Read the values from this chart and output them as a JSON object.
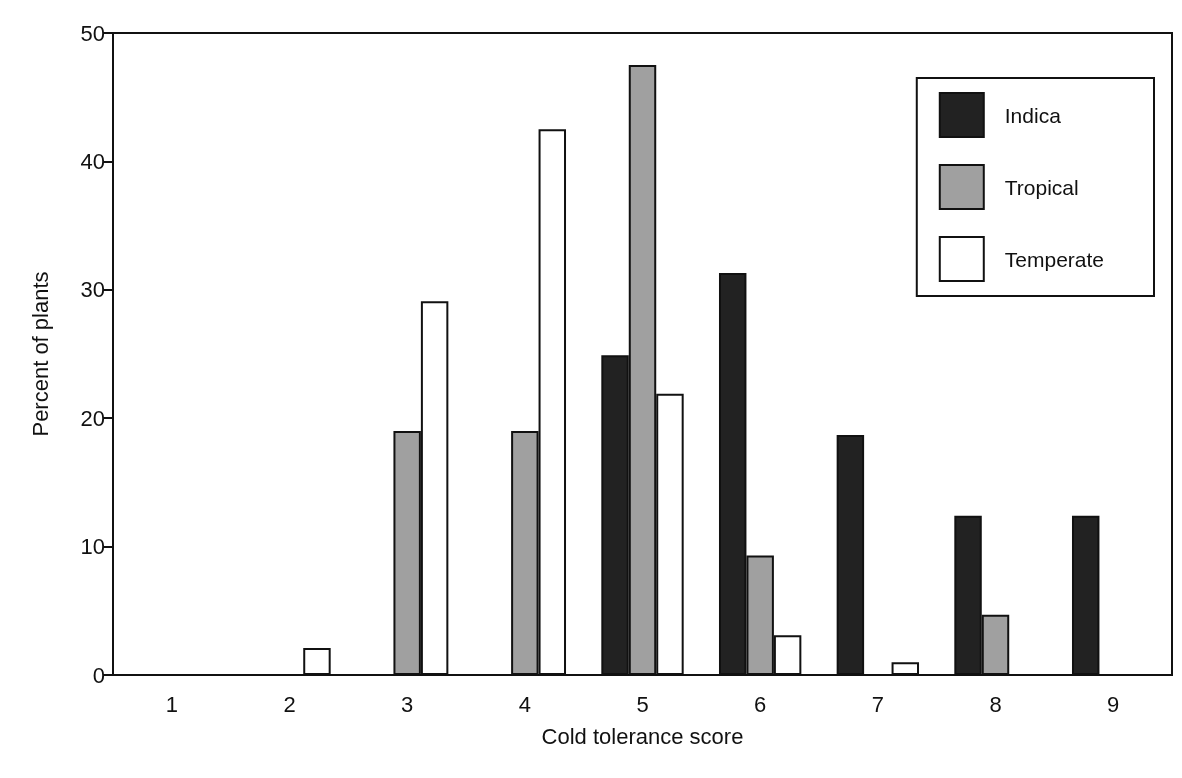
{
  "chart_data": {
    "type": "bar",
    "xlabel": "Cold tolerance score",
    "ylabel": "Percent of plants",
    "categories": [
      "1",
      "2",
      "3",
      "4",
      "5",
      "6",
      "7",
      "8",
      "9"
    ],
    "series": [
      {
        "name": "Indica",
        "color": "#222222",
        "values": [
          0,
          0,
          0,
          0,
          24.9,
          31.3,
          18.7,
          12.4,
          12.4
        ]
      },
      {
        "name": "Tropical",
        "color": "#a0a0a0",
        "values": [
          0,
          0,
          19.0,
          19.0,
          47.5,
          9.3,
          0,
          4.7,
          0
        ]
      },
      {
        "name": "Temperate",
        "color": "#ffffff",
        "values": [
          0,
          2.1,
          29.1,
          42.5,
          21.9,
          3.1,
          1.0,
          0,
          0
        ]
      }
    ],
    "ylim": [
      0,
      50
    ],
    "yticks": [
      0,
      10,
      20,
      30,
      40,
      50
    ],
    "grid": false,
    "legend": "top right"
  }
}
